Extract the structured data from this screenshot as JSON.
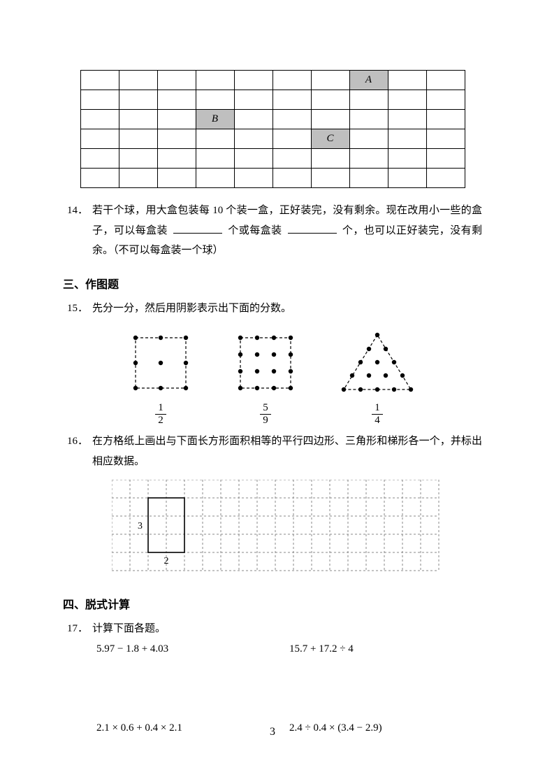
{
  "grid13": {
    "rows": 6,
    "cols": 10,
    "shaded": [
      {
        "r": 0,
        "c": 7,
        "label": "A"
      },
      {
        "r": 2,
        "c": 3,
        "label": "B"
      },
      {
        "r": 3,
        "c": 6,
        "label": "C"
      }
    ]
  },
  "q14": {
    "num": "14．",
    "text_a": "若干个球，用大盒包装每 10 个装一盒，正好装完，没有剩余。现在改用小一些的盒子，可以每盒装",
    "text_b": "个或每盒装",
    "text_c": "个，也可以正好装完，没有剩余。（不可以每盒装一个球）"
  },
  "section3": "三、作图题",
  "q15": {
    "num": "15．",
    "text": "先分一分，然后用阴影表示出下面的分数。",
    "f1_num": "1",
    "f1_den": "2",
    "f2_num": "5",
    "f2_den": "9",
    "f3_num": "1",
    "f3_den": "4"
  },
  "q16": {
    "num": "16．",
    "text": "在方格纸上画出与下面长方形面积相等的平行四边形、三角形和梯形各一个，并标出相应数据。",
    "label_h": "3",
    "label_w": "2"
  },
  "section4": "四、脱式计算",
  "q17": {
    "num": "17．",
    "text": "计算下面各题。",
    "e1": "5.97 − 1.8 + 4.03",
    "e2": "15.7 + 17.2 ÷ 4",
    "e3": "2.1 × 0.6 + 0.4 × 2.1",
    "e4": "2.4 ÷ 0.4 × (3.4 − 2.9)"
  },
  "pageNumber": "3"
}
